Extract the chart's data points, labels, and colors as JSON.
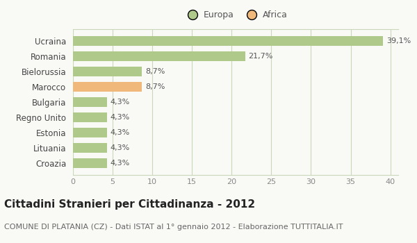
{
  "categories": [
    "Ucraina",
    "Romania",
    "Bielorussia",
    "Marocco",
    "Bulgaria",
    "Regno Unito",
    "Estonia",
    "Lituania",
    "Croazia"
  ],
  "values": [
    39.1,
    21.7,
    8.7,
    8.7,
    4.3,
    4.3,
    4.3,
    4.3,
    4.3
  ],
  "labels": [
    "39,1%",
    "21,7%",
    "8,7%",
    "8,7%",
    "4,3%",
    "4,3%",
    "4,3%",
    "4,3%",
    "4,3%"
  ],
  "colors": [
    "#aec98a",
    "#aec98a",
    "#aec98a",
    "#f0b87a",
    "#aec98a",
    "#aec98a",
    "#aec98a",
    "#aec98a",
    "#aec98a"
  ],
  "legend_labels": [
    "Europa",
    "Africa"
  ],
  "legend_colors": [
    "#aec98a",
    "#f0b87a"
  ],
  "xlim": [
    0,
    41
  ],
  "xticks": [
    0,
    5,
    10,
    15,
    20,
    25,
    30,
    35,
    40
  ],
  "title": "Cittadini Stranieri per Cittadinanza - 2012",
  "subtitle": "COMUNE DI PLATANIA (CZ) - Dati ISTAT al 1° gennaio 2012 - Elaborazione TUTTITALIA.IT",
  "background_color": "#f9f9f6",
  "grid_color": "#c8d8b8",
  "bar_label_fontsize": 8,
  "title_fontsize": 11,
  "subtitle_fontsize": 8
}
